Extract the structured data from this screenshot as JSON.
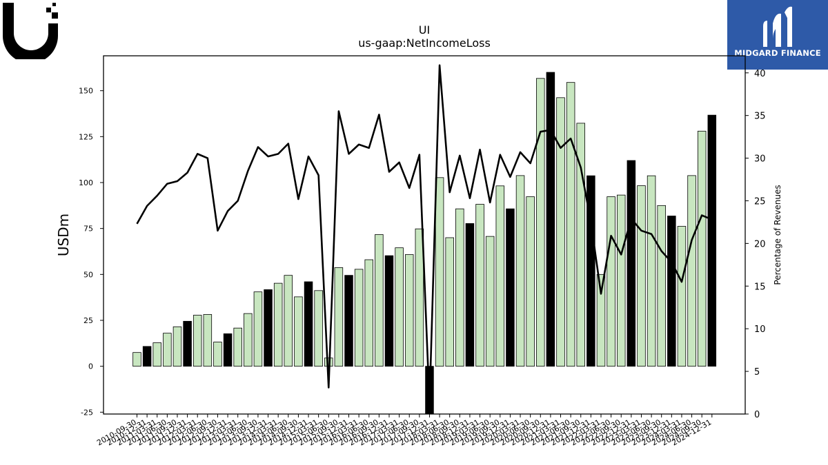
{
  "header": {
    "ticker": "UI",
    "metric": "us-gaap:NetIncomeLoss"
  },
  "branding": {
    "company_logo_icon": "ubiquiti-u-logo-icon",
    "publisher_logo_icon": "midgard-finance-logo-icon",
    "publisher_name": "MIDGARD FINANCE",
    "publisher_bg": "#2e5aa8"
  },
  "chart_data": {
    "type": "bar",
    "ylabel": "USDm",
    "y2label": "Percentage of Revenues",
    "ylim": [
      -26,
      169
    ],
    "y2lim": [
      0,
      42
    ],
    "yticks": [
      -25,
      0,
      25,
      50,
      75,
      100,
      125,
      150
    ],
    "y2ticks": [
      0,
      5,
      10,
      15,
      20,
      25,
      30,
      35,
      40
    ],
    "colors": {
      "quarter_bar": "#c8e6c0",
      "fiscal_year_end_bar": "#000000",
      "line": "#000000"
    },
    "categories": [
      "2010-09-30",
      "2010-12-31",
      "2011-03-31",
      "2011-06-30",
      "2011-09-30",
      "2011-12-31",
      "2012-03-31",
      "2012-06-30",
      "2012-09-30",
      "2012-12-31",
      "2013-03-31",
      "2013-06-30",
      "2013-09-30",
      "2013-12-31",
      "2014-03-31",
      "2014-06-30",
      "2014-09-30",
      "2014-12-31",
      "2015-03-31",
      "2015-06-30",
      "2015-09-30",
      "2015-12-31",
      "2016-03-31",
      "2016-06-30",
      "2016-09-30",
      "2016-12-31",
      "2017-03-31",
      "2017-06-30",
      "2017-09-30",
      "2017-12-31",
      "2018-03-31",
      "2018-06-30",
      "2018-09-30",
      "2018-12-31",
      "2019-03-31",
      "2019-06-30",
      "2019-09-30",
      "2019-12-31",
      "2020-03-31",
      "2020-06-30",
      "2020-09-30",
      "2020-12-31",
      "2021-03-31",
      "2021-06-30",
      "2021-09-30",
      "2021-12-31",
      "2022-03-31",
      "2022-06-30",
      "2022-09-30",
      "2022-12-31",
      "2023-03-31",
      "2023-06-30",
      "2023-09-30",
      "2023-12-31",
      "2024-03-31",
      "2024-06-30",
      "2024-09-30",
      "2024-12-31"
    ],
    "series": [
      {
        "name": "Net income",
        "type": "bar",
        "values": [
          7.5,
          10.8,
          12.8,
          18,
          21.5,
          24.5,
          27.8,
          28.2,
          13.2,
          17.7,
          20.8,
          28.7,
          40.5,
          41.7,
          45.2,
          49.5,
          37.8,
          46,
          41.2,
          4.5,
          53.7,
          49.5,
          52.8,
          58,
          71.7,
          60.2,
          64.5,
          60.8,
          74.8,
          -27.5,
          102.7,
          70,
          85.7,
          77.7,
          88.2,
          70.7,
          98.2,
          85.7,
          103.8,
          92.3,
          156.7,
          160,
          146.2,
          154.5,
          132.3,
          103.7,
          50,
          92.3,
          93.2,
          112,
          98.3,
          103.7,
          87.5,
          81.8,
          76.2,
          103.8,
          128,
          136.7
        ],
        "fiscal_year_end": [
          false,
          true,
          false,
          false,
          false,
          true,
          false,
          false,
          false,
          true,
          false,
          false,
          false,
          true,
          false,
          false,
          false,
          true,
          false,
          false,
          false,
          true,
          false,
          false,
          false,
          true,
          false,
          false,
          false,
          true,
          false,
          false,
          false,
          true,
          false,
          false,
          false,
          true,
          false,
          false,
          false,
          true,
          false,
          false,
          false,
          true,
          false,
          false,
          false,
          true,
          false,
          false,
          false,
          true,
          false,
          false,
          false,
          true
        ]
      },
      {
        "name": "Percentage of Revenues",
        "type": "line",
        "axis": "right",
        "values": [
          22.3,
          24.4,
          25.6,
          27,
          27.3,
          28.3,
          30.5,
          30,
          21.5,
          23.8,
          25,
          28.5,
          31.3,
          30.2,
          30.5,
          31.7,
          25.2,
          30.2,
          28,
          3.1,
          35.5,
          30.5,
          31.6,
          31.2,
          35.1,
          28.4,
          29.5,
          26.5,
          30.4,
          1.2,
          40.9,
          26,
          30.3,
          25.3,
          31,
          24.8,
          30.4,
          27.8,
          30.7,
          29.4,
          33.1,
          33.3,
          31.2,
          32.3,
          28.9,
          22.5,
          14.1,
          20.9,
          18.7,
          22.9,
          21.5,
          21.1,
          19.1,
          17.8,
          15.5,
          20.4,
          23.3,
          22.8
        ]
      }
    ]
  }
}
